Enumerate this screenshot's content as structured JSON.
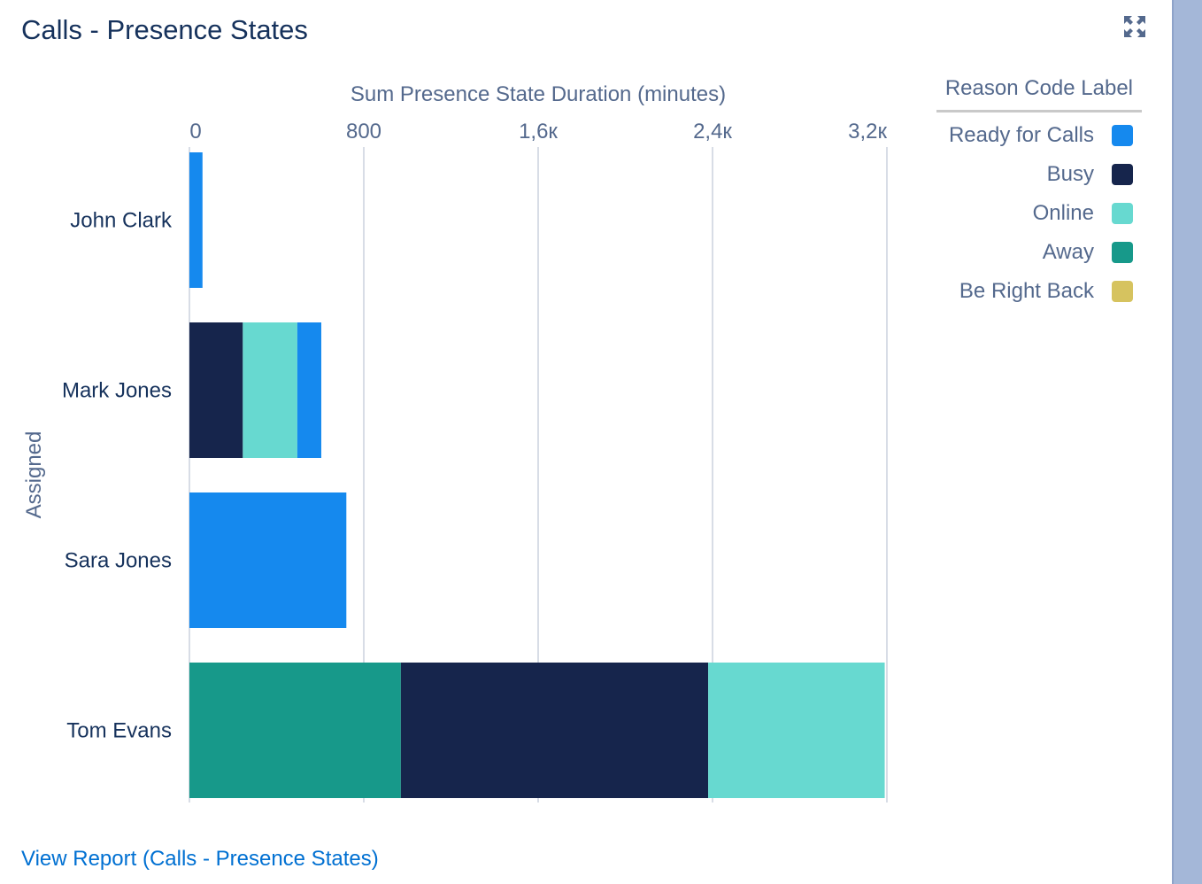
{
  "card": {
    "title": "Calls - Presence States",
    "view_report_link": "View Report (Calls - Presence States)"
  },
  "colors": {
    "title": "#16325c",
    "link": "#0070d2",
    "Ready for Calls": "#1589ee",
    "Busy": "#16254c",
    "Online": "#67d9d0",
    "Away": "#17998a",
    "Be Right Back": "#d6c35f"
  },
  "icons": {
    "expand": "expand-arrows-icon"
  },
  "chart_data": {
    "type": "bar",
    "orientation": "horizontal",
    "stacked": true,
    "xlabel": "Sum Presence State Duration (minutes)",
    "ylabel": "Assigned",
    "xlim": [
      0,
      3200
    ],
    "x_ticks": [
      0,
      800,
      1600,
      2400,
      3200
    ],
    "x_tick_labels": [
      "0",
      "800",
      "1,6к",
      "2,4к",
      "3,2к"
    ],
    "x_axis_position": "top",
    "grid": true,
    "categories": [
      "John Clark",
      "Mark Jones",
      "Sara Jones",
      "Tom Evans"
    ],
    "legend": {
      "title": "Reason Code Label",
      "position": "right",
      "entries": [
        "Ready for Calls",
        "Busy",
        "Online",
        "Away",
        "Be Right Back"
      ]
    },
    "bars": [
      {
        "category": "John Clark",
        "segments": [
          {
            "series": "Ready for Calls",
            "value": 60
          }
        ]
      },
      {
        "category": "Mark Jones",
        "segments": [
          {
            "series": "Busy",
            "value": 245
          },
          {
            "series": "Online",
            "value": 250
          },
          {
            "series": "Ready for Calls",
            "value": 110
          }
        ]
      },
      {
        "category": "Sara Jones",
        "segments": [
          {
            "series": "Ready for Calls",
            "value": 720
          }
        ]
      },
      {
        "category": "Tom Evans",
        "segments": [
          {
            "series": "Away",
            "value": 970
          },
          {
            "series": "Busy",
            "value": 1410
          },
          {
            "series": "Online",
            "value": 810
          }
        ]
      }
    ]
  }
}
